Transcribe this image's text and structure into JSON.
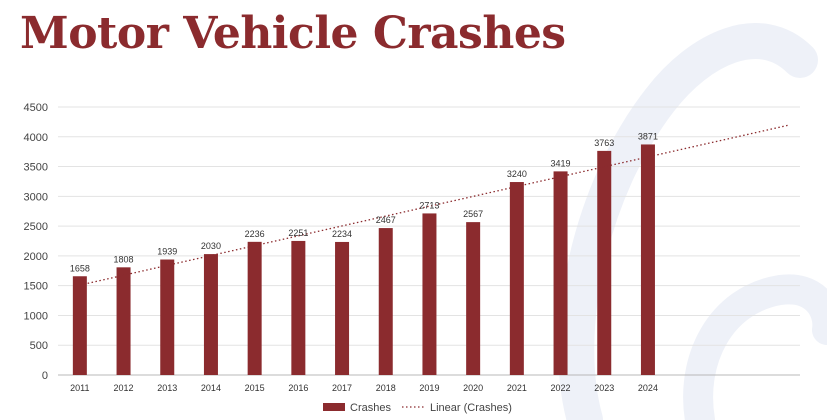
{
  "title": "Motor Vehicle Crashes",
  "colors": {
    "title": "#8b2b2e",
    "bar": "#8b2b2e",
    "trend": "#8b2b2e",
    "grid": "#e3e3e3",
    "axis": "#b8b8b8",
    "watermark": "#eef1f8"
  },
  "chart_data": {
    "type": "bar",
    "title": "",
    "xlabel": "",
    "ylabel": "",
    "categories": [
      "2011",
      "2012",
      "2013",
      "2014",
      "2015",
      "2016",
      "2017",
      "2018",
      "2019",
      "2020",
      "2021",
      "2022",
      "2023",
      "2024"
    ],
    "series": [
      {
        "name": "Crashes",
        "values": [
          1658,
          1808,
          1939,
          2030,
          2236,
          2251,
          2234,
          2467,
          2713,
          2567,
          3240,
          3419,
          3763,
          3871
        ]
      }
    ],
    "trendline": {
      "name": "Linear (Crashes)",
      "type": "linear",
      "style": "dotted",
      "forecast_forward": true
    },
    "ylim": [
      0,
      4500
    ],
    "yticks": [
      0,
      500,
      1000,
      1500,
      2000,
      2500,
      3000,
      3500,
      4000,
      4500
    ],
    "grid": true,
    "data_labels": true,
    "legend_position": "bottom"
  }
}
